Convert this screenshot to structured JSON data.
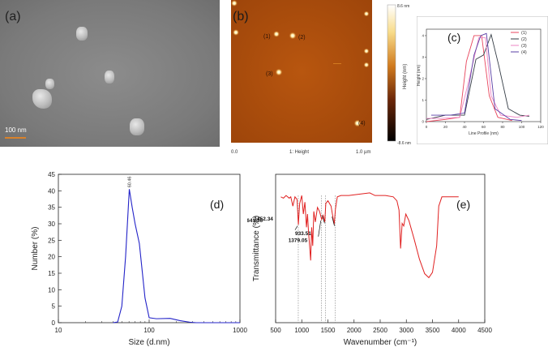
{
  "panel_a": {
    "label": "(a)",
    "scale_text": "100 nm"
  },
  "panel_b": {
    "label": "(b)",
    "colorbar_max": "8.6 nm",
    "colorbar_min": "-8.6 nm",
    "colorbar_title": "Height (nm)",
    "axis_start": "0.0",
    "axis_title": "1: Height",
    "axis_end": "1.0 µm",
    "particle_labels": [
      "(1)",
      "(2)",
      "(3)",
      "(4)"
    ],
    "colors": {
      "dark": "#2a0f05",
      "mid": "#b3520f",
      "bright": "#fff2c8"
    }
  },
  "chart_data": [
    {
      "id": "c",
      "type": "line",
      "label": "(c)",
      "xlabel": "Line Profile (nm)",
      "ylabel": "Height (nm)",
      "xlim": [
        0,
        120
      ],
      "ylim": [
        0,
        4.3
      ],
      "xticks": [
        "0",
        "20",
        "40",
        "60",
        "80",
        "100",
        "120"
      ],
      "yticks": [
        "0",
        "1",
        "2",
        "3",
        "4"
      ],
      "legend": [
        "(1)",
        "(2)",
        "(3)",
        "(4)"
      ],
      "series": [
        {
          "name": "(1)",
          "color": "#e8455c",
          "x": [
            0,
            20,
            35,
            42,
            50,
            58,
            66,
            75,
            90
          ],
          "y": [
            0.0,
            0.1,
            0.2,
            2.8,
            4.0,
            4.0,
            1.2,
            0.2,
            0.05
          ]
        },
        {
          "name": "(2)",
          "color": "#333b44",
          "x": [
            0,
            20,
            40,
            52,
            60,
            68,
            76,
            86,
            98,
            108
          ],
          "y": [
            0.1,
            0.3,
            0.3,
            2.9,
            3.1,
            4.05,
            2.6,
            0.6,
            0.3,
            0.25
          ]
        },
        {
          "name": "(3)",
          "color": "#ee86c4",
          "x": [
            0,
            15,
            35,
            45,
            55,
            62,
            68,
            78,
            95,
            108
          ],
          "y": [
            0.15,
            0.15,
            0.2,
            2.0,
            3.9,
            3.9,
            1.2,
            0.3,
            0.2,
            0.3
          ]
        },
        {
          "name": "(4)",
          "color": "#5a3fa6",
          "x": [
            5,
            25,
            40,
            50,
            57,
            63,
            72,
            88,
            100
          ],
          "y": [
            0.3,
            0.3,
            0.4,
            3.1,
            4.0,
            4.1,
            0.6,
            0.1,
            0.05
          ]
        }
      ]
    },
    {
      "id": "d",
      "type": "line",
      "label": "(d)",
      "xlabel": "Size (d.nm)",
      "ylabel": "Number (%)",
      "xscale": "log",
      "xlim": [
        10,
        1000
      ],
      "ylim": [
        0,
        45
      ],
      "xticks": [
        "10",
        "100",
        "1000"
      ],
      "yticks": [
        "0",
        "5",
        "10",
        "15",
        "20",
        "25",
        "30",
        "35",
        "40",
        "45"
      ],
      "peak_label": "60.46",
      "series": [
        {
          "name": "Number",
          "color": "#2323c8",
          "x": [
            40,
            45,
            50,
            55,
            60.46,
            65,
            70,
            78,
            90,
            100,
            120,
            170,
            220,
            280,
            330,
            1000
          ],
          "y": [
            0,
            0.2,
            5,
            20,
            40.5,
            35,
            30,
            24,
            7.5,
            1.5,
            1.2,
            1.3,
            0.6,
            0.15,
            0,
            0
          ]
        }
      ]
    },
    {
      "id": "e",
      "type": "line",
      "label": "(e)",
      "xlabel": "Wavenumber (cm⁻¹)",
      "ylabel": "Transmittance (%)",
      "xlim": [
        500,
        4500
      ],
      "xticks": [
        "500",
        "1000",
        "1500",
        "2000",
        "2500",
        "3000",
        "3500",
        "4000",
        "4500"
      ],
      "annotations": [
        "933.51",
        "1379.05",
        "1452.34",
        "1641.36"
      ],
      "annotation_x": [
        933.51,
        1379.05,
        1452.34,
        1641.36
      ],
      "series": [
        {
          "name": "FTIR",
          "color": "#e02020",
          "x": [
            600,
            650,
            700,
            760,
            790,
            830,
            870,
            910,
            935,
            960,
            1000,
            1030,
            1060,
            1090,
            1110,
            1130,
            1150,
            1170,
            1190,
            1210,
            1230,
            1260,
            1300,
            1340,
            1380,
            1410,
            1440,
            1460,
            1500,
            1560,
            1620,
            1645,
            1680,
            1750,
            1900,
            2100,
            2300,
            2400,
            2600,
            2750,
            2820,
            2860,
            2890,
            2920,
            2950,
            2990,
            3050,
            3150,
            3250,
            3350,
            3430,
            3500,
            3580,
            3620,
            3680,
            3800,
            4000
          ],
          "y": [
            95,
            94,
            96,
            94,
            95,
            88,
            95,
            93,
            74,
            90,
            96,
            82,
            91,
            72,
            82,
            68,
            58,
            47,
            72,
            58,
            84,
            76,
            87,
            84,
            78,
            81,
            76,
            90,
            92,
            88,
            74,
            86,
            95,
            96,
            96,
            97,
            98,
            96,
            96,
            95,
            92,
            85,
            56,
            75,
            73,
            82,
            77,
            63,
            48,
            37,
            34,
            38,
            58,
            88,
            95,
            95,
            95
          ]
        }
      ]
    }
  ]
}
